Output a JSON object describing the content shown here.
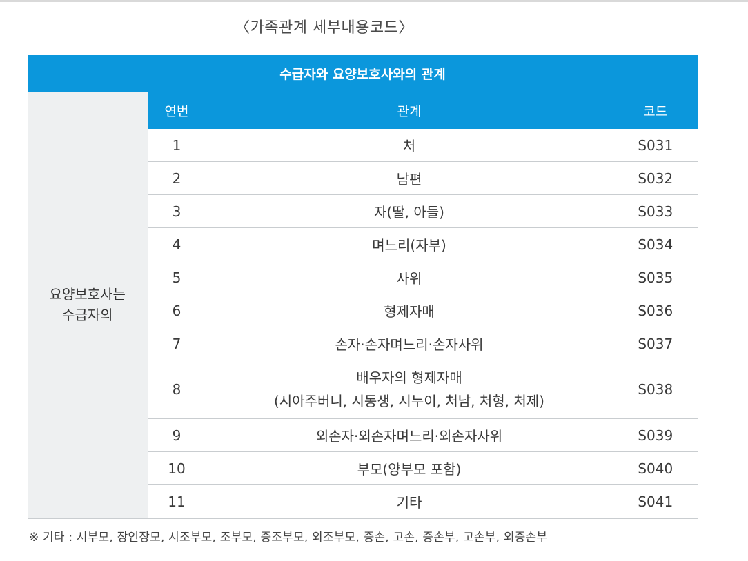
{
  "caption": "〈가족관계 세부내용코드〉",
  "banner": "수급자와 요양보호사와의 관계",
  "side_label_line1": "요양보호사는",
  "side_label_line2": "수급자의",
  "headers": {
    "index": "연번",
    "relation": "관계",
    "code": "코드"
  },
  "rows": [
    {
      "no": "1",
      "rel1": "처",
      "rel2": "",
      "code": "S031"
    },
    {
      "no": "2",
      "rel1": "남편",
      "rel2": "",
      "code": "S032"
    },
    {
      "no": "3",
      "rel1": "자(딸, 아들)",
      "rel2": "",
      "code": "S033"
    },
    {
      "no": "4",
      "rel1": "며느리(자부)",
      "rel2": "",
      "code": "S034"
    },
    {
      "no": "5",
      "rel1": "사위",
      "rel2": "",
      "code": "S035"
    },
    {
      "no": "6",
      "rel1": "형제자매",
      "rel2": "",
      "code": "S036"
    },
    {
      "no": "7",
      "rel1": "손자·손자며느리·손자사위",
      "rel2": "",
      "code": "S037"
    },
    {
      "no": "8",
      "rel1": "배우자의 형제자매",
      "rel2": "(시아주버니, 시동생, 시누이, 처남, 처형, 처제)",
      "code": "S038"
    },
    {
      "no": "9",
      "rel1": "외손자·외손자며느리·외손자사위",
      "rel2": "",
      "code": "S039"
    },
    {
      "no": "10",
      "rel1": "부모(양부모 포함)",
      "rel2": "",
      "code": "S040"
    },
    {
      "no": "11",
      "rel1": "기타",
      "rel2": "",
      "code": "S041"
    }
  ],
  "footnote": "※ 기타 : 시부모, 장인장모, 시조부모, 조부모, 증조부모, 외조부모, 증손, 고손, 증손부, 고손부, 외증손부",
  "colors": {
    "header_blue": "#0b97dc",
    "side_gray": "#eef0f1",
    "line_gray": "#c9cdd0"
  }
}
